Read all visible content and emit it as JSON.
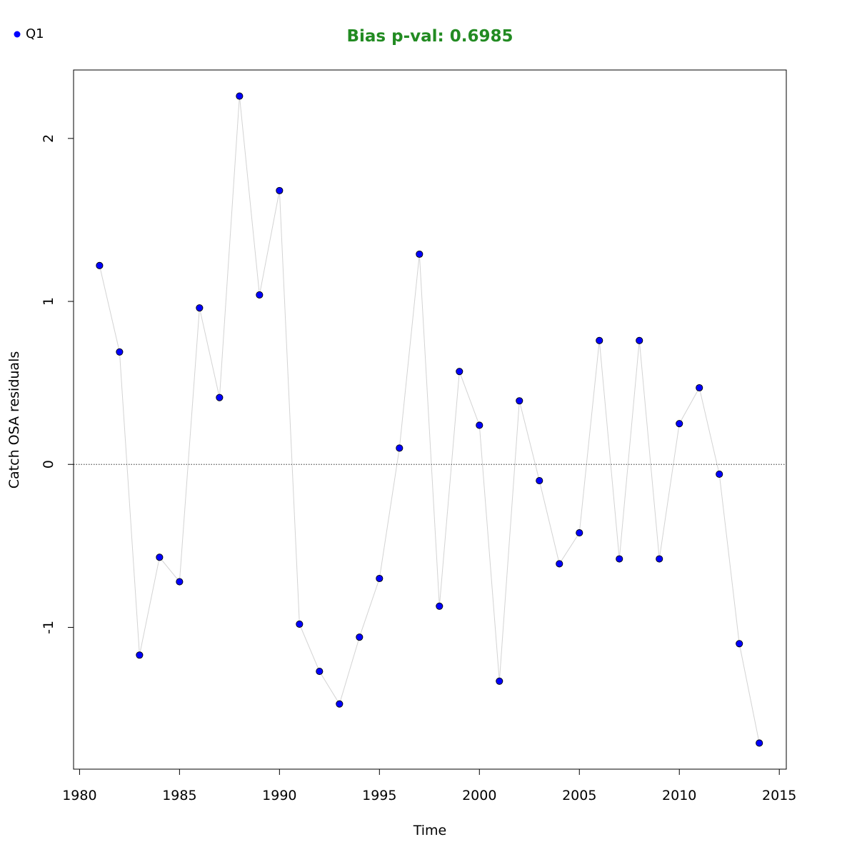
{
  "chart_data": {
    "type": "scatter",
    "title": "Bias p-val: 0.6985",
    "xlabel": "Time",
    "ylabel": "Catch OSA residuals",
    "xlim": [
      1979.7,
      2015.35
    ],
    "ylim": [
      -1.87,
      2.42
    ],
    "x_ticks": [
      1980,
      1985,
      1990,
      1995,
      2000,
      2005,
      2010,
      2015
    ],
    "y_ticks": [
      -1,
      0,
      1,
      2
    ],
    "reference_line": {
      "y": 0,
      "style": "dotted"
    },
    "grid": false,
    "legend": {
      "position": "top-left",
      "entries": [
        "Q1"
      ]
    },
    "colors": {
      "title": "#228b22",
      "point_fill": "#0000ff",
      "point_stroke": "#000000",
      "line": "#d3d3d3",
      "reference": "#333333"
    },
    "series": [
      {
        "name": "Q1",
        "x": [
          1981,
          1982,
          1983,
          1984,
          1985,
          1986,
          1987,
          1988,
          1989,
          1990,
          1991,
          1992,
          1993,
          1994,
          1995,
          1996,
          1997,
          1998,
          1999,
          2000,
          2001,
          2002,
          2003,
          2004,
          2005,
          2006,
          2007,
          2008,
          2009,
          2010,
          2011,
          2012,
          2013,
          2014
        ],
        "y": [
          1.22,
          0.69,
          -1.17,
          -0.57,
          -0.72,
          0.96,
          0.41,
          2.26,
          1.04,
          1.68,
          -0.98,
          -1.27,
          -1.47,
          -1.06,
          -0.7,
          0.1,
          1.29,
          -0.87,
          0.57,
          0.24,
          -1.33,
          0.39,
          -0.1,
          -0.61,
          -0.42,
          0.76,
          -0.58,
          0.76,
          -0.58,
          0.25,
          0.47,
          -0.06,
          -1.1,
          -1.71
        ]
      }
    ]
  }
}
